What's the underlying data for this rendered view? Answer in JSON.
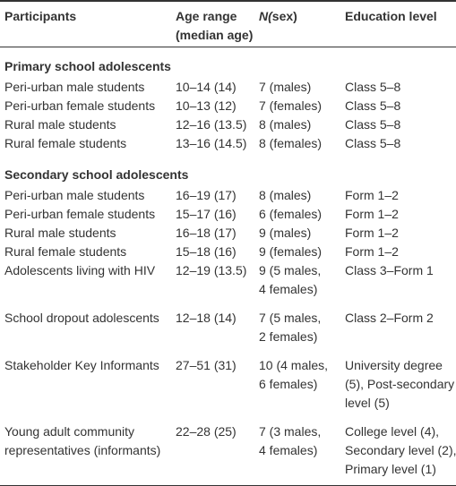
{
  "table": {
    "header": [
      [
        "Participants"
      ],
      [
        "Age range",
        "(median age)"
      ],
      [
        "N(sex)"
      ],
      [
        "Education level"
      ]
    ],
    "sections": [
      {
        "title": "Primary school adolescents",
        "rows": [
          [
            [
              "Peri-urban male students"
            ],
            [
              "10–14 (14)"
            ],
            [
              "7 (males)"
            ],
            [
              "Class 5–8"
            ]
          ],
          [
            [
              "Peri-urban female students"
            ],
            [
              "10–13 (12)"
            ],
            [
              "7 (females)"
            ],
            [
              "Class 5–8"
            ]
          ],
          [
            [
              "Rural male students"
            ],
            [
              "12–16 (13.5)"
            ],
            [
              "8 (males)"
            ],
            [
              "Class 5–8"
            ]
          ],
          [
            [
              "Rural female students"
            ],
            [
              "13–16 (14.5)"
            ],
            [
              "8 (females)"
            ],
            [
              "Class 5–8"
            ]
          ]
        ]
      },
      {
        "title": "Secondary school adolescents",
        "rows": [
          [
            [
              "Peri-urban male students"
            ],
            [
              "16–19 (17)"
            ],
            [
              "8 (males)"
            ],
            [
              "Form 1–2"
            ]
          ],
          [
            [
              "Peri-urban female students"
            ],
            [
              "15–17 (16)"
            ],
            [
              "6 (females)"
            ],
            [
              "Form 1–2"
            ]
          ],
          [
            [
              "Rural male students"
            ],
            [
              "16–18 (17)"
            ],
            [
              "9 (males)"
            ],
            [
              "Form 1–2"
            ]
          ],
          [
            [
              "Rural female students"
            ],
            [
              "15–18 (16)"
            ],
            [
              "9 (females)"
            ],
            [
              "Form 1–2"
            ]
          ],
          [
            [
              "Adolescents living with HIV"
            ],
            [
              "12–19 (13.5)"
            ],
            [
              "9 (5 males,",
              "4 females)"
            ],
            [
              "Class 3–Form 1"
            ]
          ],
          [
            [
              "School dropout adolescents"
            ],
            [
              "12–18 (14)"
            ],
            [
              "7 (5 males,",
              "2 females)"
            ],
            [
              "Class 2–Form 2"
            ]
          ],
          [
            [
              "Stakeholder Key Informants"
            ],
            [
              "27–51 (31)"
            ],
            [
              "10 (4 males,",
              "6 females)"
            ],
            [
              "University degree",
              "(5), Post-secondary",
              "level (5)"
            ]
          ],
          [
            [
              "Young adult community",
              "representatives (informants)"
            ],
            [
              "22–28 (25)"
            ],
            [
              "7 (3 males,",
              "4 females)"
            ],
            [
              "College level (4),",
              "Secondary level (2),",
              "Primary level (1)"
            ]
          ]
        ]
      }
    ]
  }
}
